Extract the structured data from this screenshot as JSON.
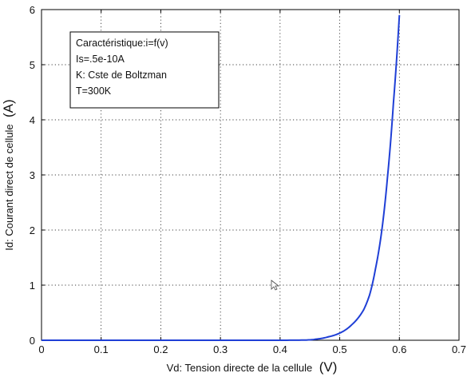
{
  "chart_data": {
    "type": "line",
    "title": "",
    "xlabel_main": "Vd: Tension directe de la cellule",
    "xlabel_unit": "(V)",
    "ylabel_main": "Id: Courant direct de cellule",
    "ylabel_unit": "(A)",
    "xlim": [
      0,
      0.7
    ],
    "ylim": [
      0,
      6
    ],
    "xticks": [
      "0",
      "0.1",
      "0.2",
      "0.3",
      "0.4",
      "0.5",
      "0.6",
      "0.7"
    ],
    "yticks": [
      "0",
      "1",
      "2",
      "3",
      "4",
      "5",
      "6"
    ],
    "grid": true,
    "grid_style": "dotted",
    "line_color": "#1f3fd6",
    "legend_position": "top-left",
    "legend_lines": [
      "Caractéristique:i=f(v)",
      "Is=.5e-10A",
      "K: Cste de Boltzman",
      "T=300K"
    ],
    "series": [
      {
        "x": [
          0,
          0.1,
          0.2,
          0.3,
          0.4,
          0.44,
          0.46,
          0.48,
          0.5,
          0.52,
          0.54,
          0.55,
          0.56,
          0.57,
          0.58,
          0.59,
          0.6
        ],
        "y": [
          0,
          0,
          0,
          0,
          0,
          0.003,
          0.02,
          0.06,
          0.13,
          0.28,
          0.55,
          0.82,
          1.3,
          1.95,
          2.95,
          4.3,
          5.9
        ]
      }
    ]
  }
}
